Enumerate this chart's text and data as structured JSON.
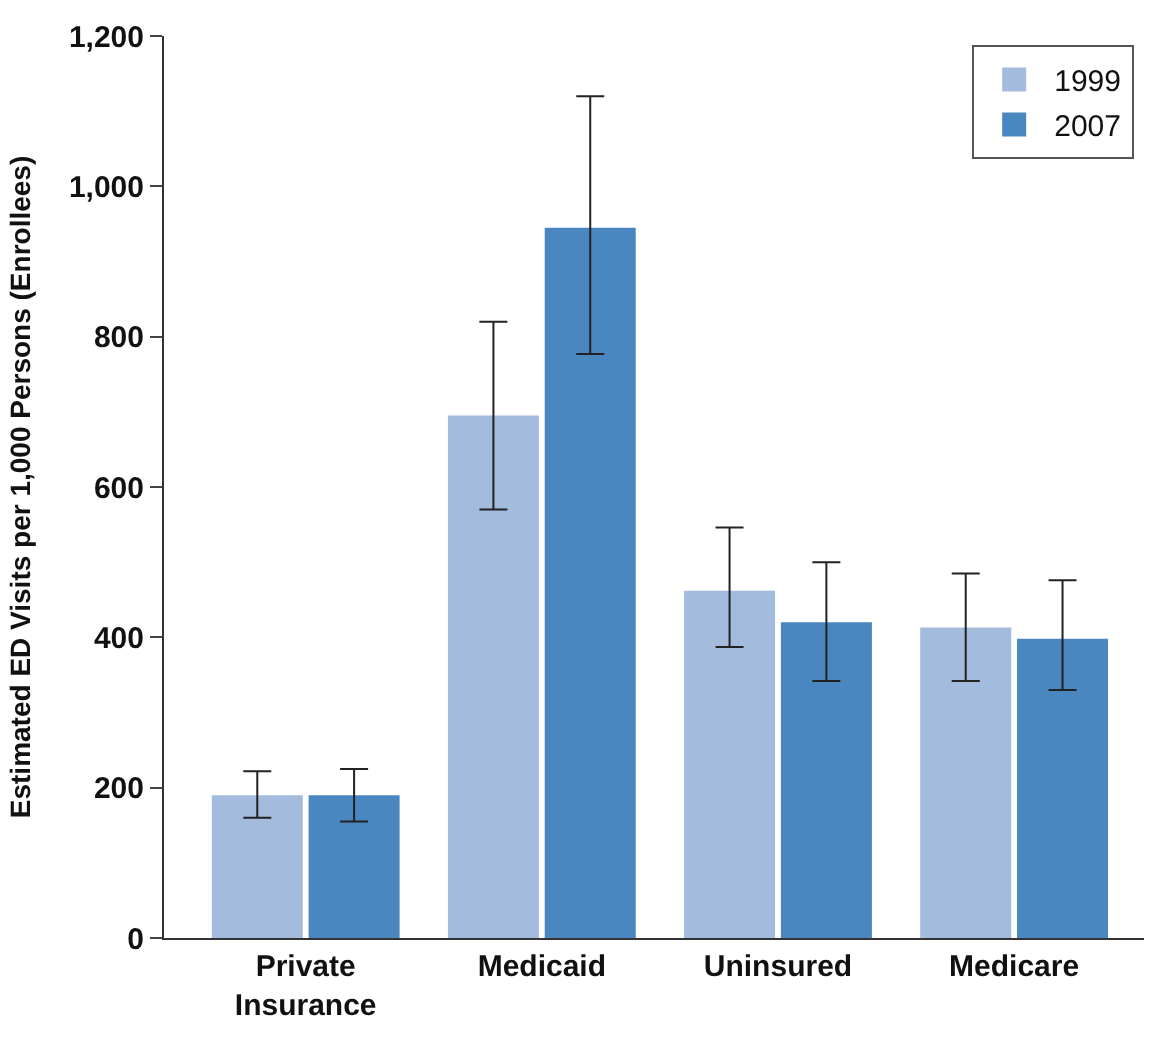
{
  "chart_data": {
    "type": "bar",
    "ylabel": "Estimated ED Visits per 1,000 Persons (Enrollees)",
    "categories": [
      "Private\nInsurance",
      "Medicaid",
      "Uninsured",
      "Medicare"
    ],
    "series": [
      {
        "name": "1999",
        "color": "#a3bbdc",
        "values": [
          190,
          695,
          462,
          413
        ],
        "errors": [
          [
            160,
            222
          ],
          [
            570,
            820
          ],
          [
            387,
            546
          ],
          [
            342,
            485
          ]
        ]
      },
      {
        "name": "2007",
        "color": "#4a87c0",
        "values": [
          190,
          945,
          420,
          398
        ],
        "errors": [
          [
            155,
            225
          ],
          [
            777,
            1120
          ],
          [
            342,
            500
          ],
          [
            330,
            476
          ]
        ]
      }
    ],
    "ylim": [
      0,
      1200
    ],
    "yticks": [
      0,
      {
        "value": 200,
        "label": "200"
      },
      {
        "value": 400,
        "label": "400"
      },
      {
        "value": 600,
        "label": "600"
      },
      {
        "value": 800,
        "label": "800"
      },
      {
        "value": 1000,
        "label": "1,000"
      },
      {
        "value": 1200,
        "label": "1,200"
      }
    ],
    "legend": "top right"
  }
}
